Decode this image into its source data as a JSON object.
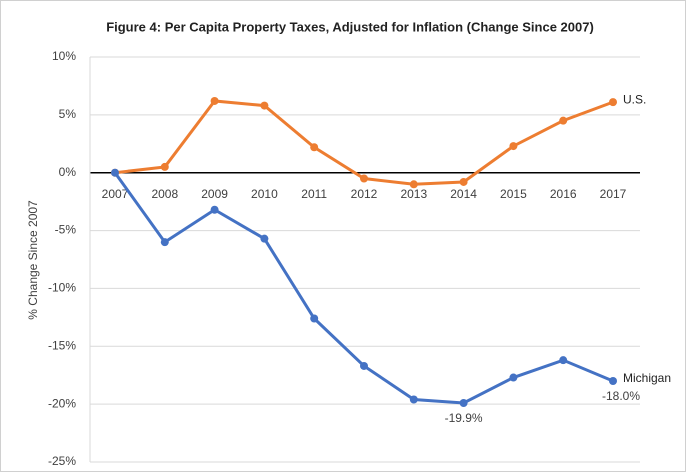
{
  "chart_data": {
    "type": "line",
    "title": "Figure 4: Per Capita Property Taxes, Adjusted for Inflation (Change Since 2007)",
    "y_label": "% Change Since 2007",
    "categories": [
      "2007",
      "2008",
      "2009",
      "2010",
      "2011",
      "2012",
      "2013",
      "2014",
      "2015",
      "2016",
      "2017"
    ],
    "series": [
      {
        "name": "U.S.",
        "color": "#ed7d31",
        "values": [
          0,
          0.5,
          6.2,
          5.8,
          2.2,
          -0.5,
          -1.0,
          -0.8,
          2.3,
          4.5,
          6.1
        ]
      },
      {
        "name": "Michigan",
        "color": "#4472c4",
        "values": [
          0,
          -6.0,
          -3.2,
          -5.7,
          -12.6,
          -16.7,
          -19.6,
          -19.9,
          -17.7,
          -16.2,
          -18.0
        ],
        "value_labels": [
          null,
          null,
          null,
          null,
          null,
          null,
          null,
          "-19.9%",
          null,
          null,
          "-18.0%"
        ]
      }
    ],
    "ylim": [
      -25,
      10
    ],
    "yticks": [
      {
        "value": 10,
        "label": "10%"
      },
      {
        "value": 5,
        "label": "5%"
      },
      {
        "value": 0,
        "label": "0%"
      },
      {
        "value": -5,
        "label": "-5%"
      },
      {
        "value": -10,
        "label": "-10%"
      },
      {
        "value": -15,
        "label": "-15%"
      },
      {
        "value": -20,
        "label": "-20%"
      },
      {
        "value": -25,
        "label": "-25%"
      }
    ],
    "grid": true
  }
}
